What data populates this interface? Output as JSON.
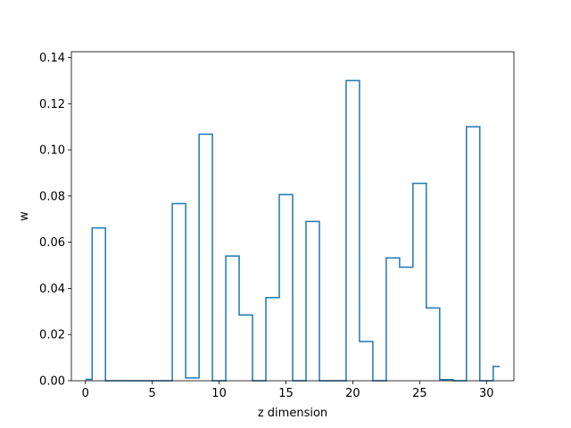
{
  "chart_data": {
    "type": "line",
    "style": "step",
    "title": "",
    "xlabel": "z dimension",
    "ylabel": "w",
    "xlim": [
      -1.05,
      32.05
    ],
    "ylim": [
      0,
      0.1425
    ],
    "grid": false,
    "x_ticks": [
      0,
      5,
      10,
      15,
      20,
      25,
      30
    ],
    "x_tick_labels": [
      "0",
      "5",
      "10",
      "15",
      "20",
      "25",
      "30"
    ],
    "y_ticks": [
      0.0,
      0.02,
      0.04,
      0.06,
      0.08,
      0.1,
      0.12,
      0.14
    ],
    "y_tick_labels": [
      "0.00",
      "0.02",
      "0.04",
      "0.06",
      "0.08",
      "0.10",
      "0.12",
      "0.14"
    ],
    "series": [
      {
        "color": "#1f77b4",
        "x": [
          0,
          1,
          2,
          3,
          4,
          5,
          6,
          7,
          8,
          9,
          10,
          11,
          12,
          13,
          14,
          15,
          16,
          17,
          18,
          19,
          20,
          21,
          22,
          23,
          24,
          25,
          26,
          27,
          28,
          29,
          30,
          31
        ],
        "values": [
          0.0006,
          0.0662,
          0.0,
          0.0,
          0.0,
          0.0,
          0.0,
          0.0767,
          0.0012,
          0.1068,
          0.0,
          0.054,
          0.0285,
          0.0,
          0.036,
          0.0806,
          0.0,
          0.069,
          0.0,
          0.0,
          0.13,
          0.017,
          0.0,
          0.0532,
          0.0492,
          0.0855,
          0.0315,
          0.0005,
          0.0,
          0.11,
          0.0,
          0.0062
        ]
      }
    ]
  }
}
